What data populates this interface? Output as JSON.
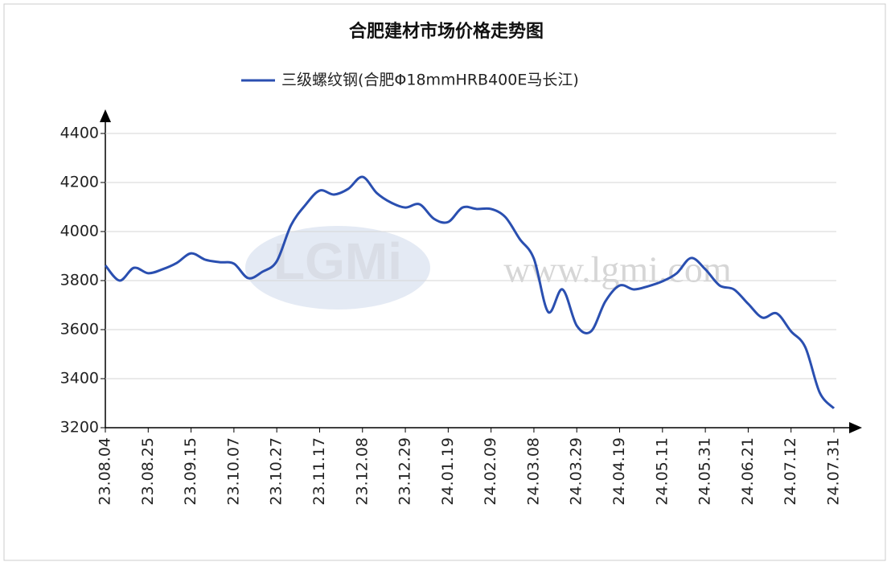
{
  "chart_data": {
    "type": "line",
    "title": "合肥建材市场价格走势图",
    "watermarks": [
      "LGMi",
      "www.lgmi.com"
    ],
    "categories": [
      "23.08.04",
      null,
      null,
      "23.08.25",
      null,
      null,
      "23.09.15",
      null,
      null,
      "23.10.07",
      null,
      null,
      "23.10.27",
      null,
      null,
      "23.11.17",
      null,
      null,
      "23.12.08",
      null,
      null,
      "23.12.29",
      null,
      null,
      "24.01.19",
      null,
      null,
      "24.02.09",
      null,
      null,
      "24.03.08",
      null,
      null,
      "24.03.29",
      null,
      null,
      "24.04.19",
      null,
      null,
      "24.05.11",
      null,
      null,
      "24.05.31",
      null,
      null,
      "24.06.21",
      null,
      null,
      "24.07.12",
      null,
      null,
      "24.07.31"
    ],
    "series": [
      {
        "name": "三级螺纹钢(合肥Φ18mmHRB400E马长江)",
        "color": "#2a4fb0",
        "values": [
          3862,
          3800,
          3852,
          3830,
          3846,
          3872,
          3911,
          3885,
          3875,
          3869,
          3810,
          3836,
          3879,
          4026,
          4108,
          4167,
          4151,
          4174,
          4223,
          4157,
          4118,
          4098,
          4111,
          4052,
          4039,
          4098,
          4092,
          4092,
          4059,
          3970,
          3889,
          3672,
          3764,
          3616,
          3593,
          3715,
          3780,
          3764,
          3777,
          3797,
          3830,
          3892,
          3846,
          3780,
          3764,
          3705,
          3649,
          3666,
          3593,
          3528,
          3344,
          3279
        ]
      }
    ],
    "ylim": [
      3200,
      4400
    ],
    "yticks": [
      3200,
      3400,
      3600,
      3800,
      4000,
      4200,
      4400
    ],
    "grid": true
  }
}
